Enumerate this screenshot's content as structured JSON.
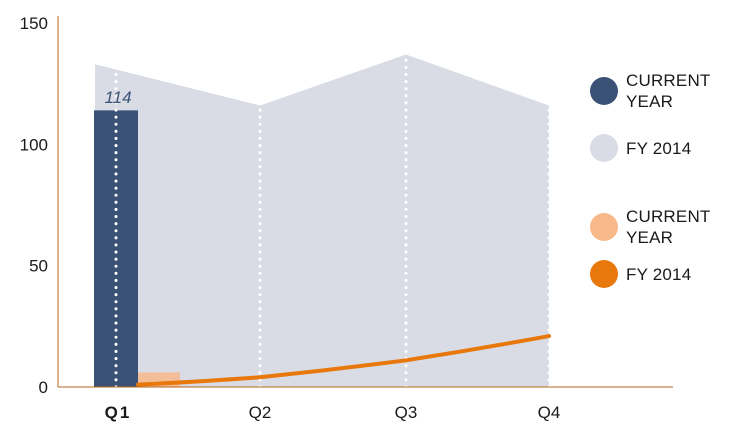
{
  "chart_data": {
    "type": "bar",
    "categories": [
      "Q1",
      "Q2",
      "Q3",
      "Q4"
    ],
    "highlight_category": "Q1",
    "ylim": [
      0,
      150
    ],
    "yticks": [
      0,
      50,
      100,
      150
    ],
    "title": "",
    "xlabel": "",
    "ylabel": "",
    "series": [
      {
        "name": "CURRENT YEAR",
        "type": "bar",
        "color": "#3a5276",
        "values": [
          114,
          null,
          null,
          null
        ],
        "data_labels": [
          "114",
          null,
          null,
          null
        ]
      },
      {
        "name": "FY 2014",
        "type": "area",
        "color": "#d9dce4",
        "values": [
          133,
          116,
          137,
          116
        ]
      },
      {
        "name": "CURRENT YEAR",
        "type": "bar",
        "color": "#f7b98a",
        "values": [
          6,
          null,
          null,
          null
        ]
      },
      {
        "name": "FY 2014",
        "type": "line",
        "color": "#e8780c",
        "values": [
          1,
          4,
          11,
          21
        ]
      }
    ],
    "legend": {
      "position": "right"
    },
    "grid": false
  }
}
